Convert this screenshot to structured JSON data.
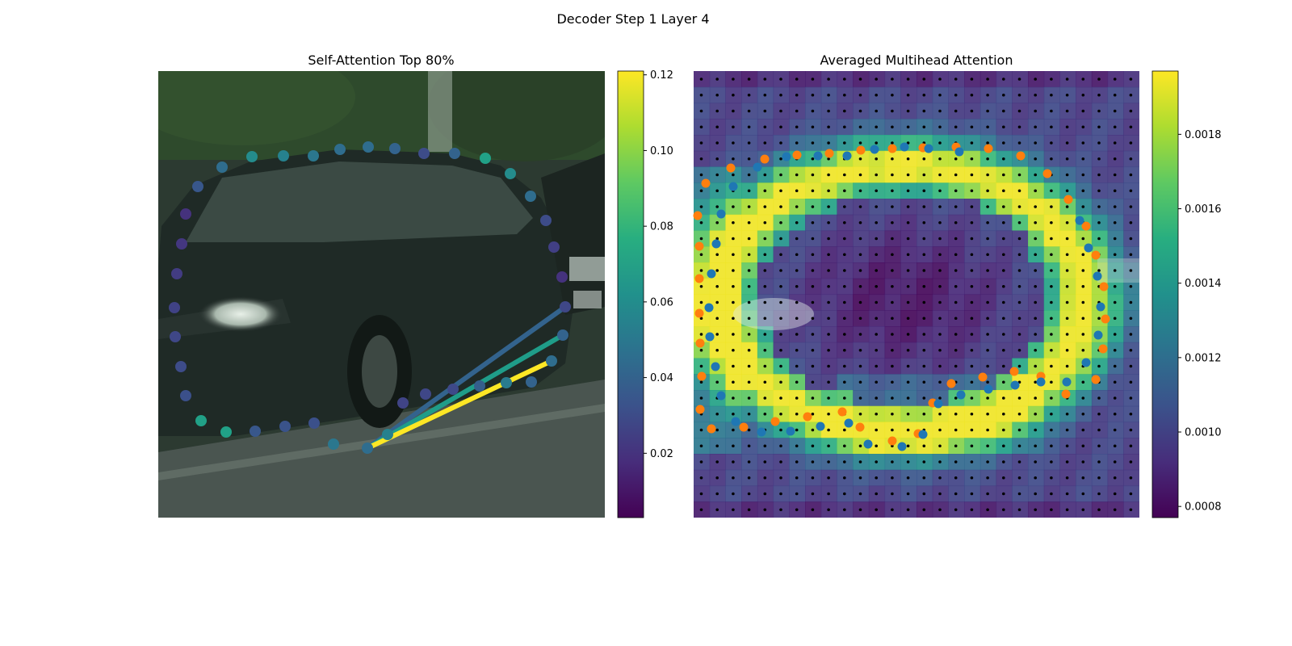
{
  "figure": {
    "suptitle": "Decoder Step 1 Layer 4"
  },
  "chart_data": [
    {
      "type": "scatter",
      "title": "Self-Attention Top 80%",
      "xlabel": "",
      "ylabel": "",
      "colormap": "viridis",
      "colorbar": {
        "ticks": [
          "0.02",
          "0.04",
          "0.06",
          "0.08",
          "0.10",
          "0.12"
        ],
        "range": [
          0.003,
          0.121
        ]
      },
      "points": [
        {
          "x": 455,
          "y": 555,
          "v": 0.045
        },
        {
          "x": 480,
          "y": 538,
          "v": 0.055
        },
        {
          "x": 499,
          "y": 499,
          "v": 0.027
        },
        {
          "x": 527,
          "y": 488,
          "v": 0.028
        },
        {
          "x": 561,
          "y": 482,
          "v": 0.029
        },
        {
          "x": 594,
          "y": 478,
          "v": 0.038
        },
        {
          "x": 627,
          "y": 474,
          "v": 0.052
        },
        {
          "x": 658,
          "y": 473,
          "v": 0.04
        },
        {
          "x": 683,
          "y": 447,
          "v": 0.045
        },
        {
          "x": 697,
          "y": 415,
          "v": 0.04
        },
        {
          "x": 700,
          "y": 380,
          "v": 0.028
        },
        {
          "x": 696,
          "y": 343,
          "v": 0.02
        },
        {
          "x": 686,
          "y": 306,
          "v": 0.025
        },
        {
          "x": 676,
          "y": 273,
          "v": 0.03
        },
        {
          "x": 657,
          "y": 243,
          "v": 0.045
        },
        {
          "x": 632,
          "y": 215,
          "v": 0.06
        },
        {
          "x": 601,
          "y": 196,
          "v": 0.07
        },
        {
          "x": 563,
          "y": 190,
          "v": 0.04
        },
        {
          "x": 525,
          "y": 190,
          "v": 0.03
        },
        {
          "x": 489,
          "y": 184,
          "v": 0.04
        },
        {
          "x": 456,
          "y": 182,
          "v": 0.045
        },
        {
          "x": 421,
          "y": 185,
          "v": 0.045
        },
        {
          "x": 388,
          "y": 193,
          "v": 0.05
        },
        {
          "x": 351,
          "y": 193,
          "v": 0.055
        },
        {
          "x": 312,
          "y": 194,
          "v": 0.06
        },
        {
          "x": 275,
          "y": 207,
          "v": 0.045
        },
        {
          "x": 245,
          "y": 231,
          "v": 0.035
        },
        {
          "x": 230,
          "y": 265,
          "v": 0.02
        },
        {
          "x": 225,
          "y": 302,
          "v": 0.022
        },
        {
          "x": 219,
          "y": 339,
          "v": 0.024
        },
        {
          "x": 216,
          "y": 381,
          "v": 0.026
        },
        {
          "x": 217,
          "y": 417,
          "v": 0.028
        },
        {
          "x": 224,
          "y": 454,
          "v": 0.03
        },
        {
          "x": 230,
          "y": 490,
          "v": 0.032
        },
        {
          "x": 249,
          "y": 521,
          "v": 0.07
        },
        {
          "x": 280,
          "y": 535,
          "v": 0.07
        },
        {
          "x": 316,
          "y": 534,
          "v": 0.035
        },
        {
          "x": 353,
          "y": 528,
          "v": 0.033
        },
        {
          "x": 389,
          "y": 524,
          "v": 0.032
        },
        {
          "x": 413,
          "y": 550,
          "v": 0.05
        }
      ],
      "lines": [
        {
          "x1": 455,
          "y1": 555,
          "x2": 683,
          "y2": 447,
          "v": 0.121
        },
        {
          "x1": 455,
          "y1": 555,
          "x2": 697,
          "y2": 415,
          "v": 0.068
        },
        {
          "x1": 455,
          "y1": 555,
          "x2": 700,
          "y2": 380,
          "v": 0.04
        }
      ]
    },
    {
      "type": "heatmap",
      "title": "Averaged Multihead Attention",
      "xlabel": "",
      "ylabel": "",
      "colormap": "viridis",
      "colorbar": {
        "ticks": [
          "0.0008",
          "0.0010",
          "0.0012",
          "0.0014",
          "0.0016",
          "0.0018"
        ],
        "range": [
          0.00077,
          0.00197
        ]
      },
      "grid": {
        "cols": 28,
        "rows": 28
      },
      "series": [
        {
          "color": "#ff7f0e",
          "points": [
            [
              867,
              507
            ],
            [
              869,
              466
            ],
            [
              867,
              425
            ],
            [
              866,
              388
            ],
            [
              866,
              345
            ],
            [
              866,
              305
            ],
            [
              864,
              267
            ],
            [
              874,
              227
            ],
            [
              905,
              208
            ],
            [
              947,
              197
            ],
            [
              987,
              192
            ],
            [
              1027,
              190
            ],
            [
              1066,
              186
            ],
            [
              1105,
              184
            ],
            [
              1143,
              183
            ],
            [
              1184,
              182
            ],
            [
              1224,
              184
            ],
            [
              1264,
              193
            ],
            [
              1297,
              215
            ],
            [
              1323,
              247
            ],
            [
              1345,
              280
            ],
            [
              1357,
              316
            ],
            [
              1367,
              355
            ],
            [
              1369,
              395
            ],
            [
              1366,
              432
            ],
            [
              1357,
              470
            ],
            [
              1320,
              488
            ],
            [
              1289,
              466
            ],
            [
              1256,
              460
            ],
            [
              1217,
              467
            ],
            [
              1178,
              475
            ],
            [
              1155,
              499
            ],
            [
              1137,
              537
            ],
            [
              1105,
              546
            ],
            [
              1065,
              529
            ],
            [
              1043,
              510
            ],
            [
              1000,
              516
            ],
            [
              960,
              522
            ],
            [
              921,
              529
            ],
            [
              881,
              531
            ]
          ]
        },
        {
          "color": "#1f77b4",
          "points": [
            [
              911,
              522
            ],
            [
              943,
              535
            ],
            [
              979,
              534
            ],
            [
              1016,
              528
            ],
            [
              1051,
              524
            ],
            [
              1075,
              550
            ],
            [
              1117,
              553
            ],
            [
              1143,
              538
            ],
            [
              1162,
              500
            ],
            [
              1190,
              489
            ],
            [
              1224,
              482
            ],
            [
              1257,
              477
            ],
            [
              1289,
              473
            ],
            [
              1321,
              473
            ],
            [
              1345,
              449
            ],
            [
              1360,
              415
            ],
            [
              1363,
              380
            ],
            [
              1359,
              342
            ],
            [
              1348,
              307
            ],
            [
              1337,
              273
            ],
            [
              1150,
              184
            ],
            [
              1188,
              188
            ],
            [
              1120,
              182
            ],
            [
              1083,
              185
            ],
            [
              1049,
              193
            ],
            [
              1013,
              193
            ],
            [
              974,
              194
            ],
            [
              938,
              207
            ],
            [
              908,
              231
            ],
            [
              893,
              265
            ],
            [
              887,
              302
            ],
            [
              881,
              339
            ],
            [
              878,
              381
            ],
            [
              879,
              417
            ],
            [
              886,
              454
            ],
            [
              893,
              490
            ]
          ]
        }
      ]
    }
  ]
}
